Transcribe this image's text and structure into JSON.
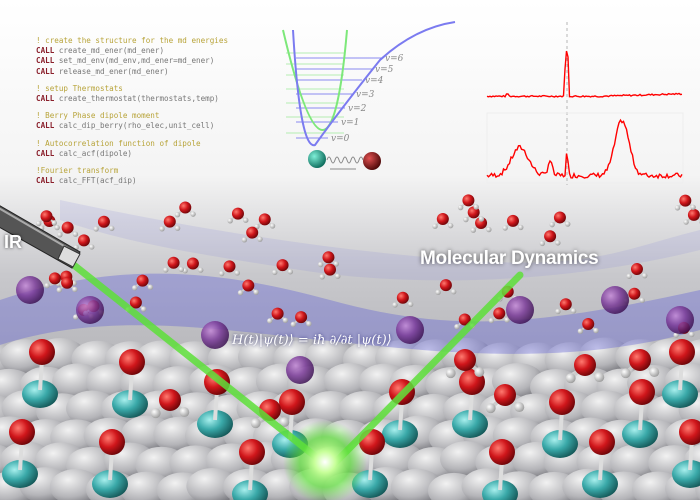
{
  "code": {
    "lines": [
      {
        "type": "comment",
        "text": "! create the structure for the md energies"
      },
      {
        "type": "call",
        "kw": "CALL",
        "text": "create_md_ener(md_ener)"
      },
      {
        "type": "call",
        "kw": "CALL",
        "text": "set_md_env(md_env,md_ener=md_ener)"
      },
      {
        "type": "call",
        "kw": "CALL",
        "text": "release_md_ener(md_ener)"
      },
      {
        "type": "gap"
      },
      {
        "type": "comment",
        "text": "! setup Thermostats"
      },
      {
        "type": "call",
        "kw": "CALL",
        "text": "create_thermostat(thermostats,temp)"
      },
      {
        "type": "gap"
      },
      {
        "type": "comment",
        "text": "! Berry Phase dipole moment"
      },
      {
        "type": "call",
        "kw": "CALL",
        "text": "calc_dip_berry(rho_elec,unit_cell)"
      },
      {
        "type": "gap"
      },
      {
        "type": "comment",
        "text": "! Autocorrelation function of dipole"
      },
      {
        "type": "call",
        "kw": "CALL",
        "text": "calc_acf(dipole)"
      },
      {
        "type": "gap"
      },
      {
        "type": "comment",
        "text": "!Fourier transform"
      },
      {
        "type": "call",
        "kw": "CALL",
        "text": "calc_FFT(acf_dip)"
      }
    ]
  },
  "potential": {
    "levels": [
      "v=0",
      "v=1",
      "v=2",
      "v=3",
      "v=4",
      "v=5",
      "v=6"
    ],
    "colors": {
      "harmonic": "#7de87a",
      "morse": "#7b7bf0",
      "atom_a": "#1a9a8a",
      "atom_b": "#8b1a1a"
    }
  },
  "spectra": {
    "color": "#ff0000"
  },
  "labels": {
    "ir": "IR",
    "molecular_dynamics": "Molecular Dynamics",
    "equation": "H(t)|ψ(t)⟩ = iħ ∂/∂t |ψ(t)⟩"
  },
  "colors": {
    "oxygen": "#d0161b",
    "teal": "#3aa9a9",
    "beam": "#5ee03a",
    "ribbon": "#5a5ad8"
  }
}
